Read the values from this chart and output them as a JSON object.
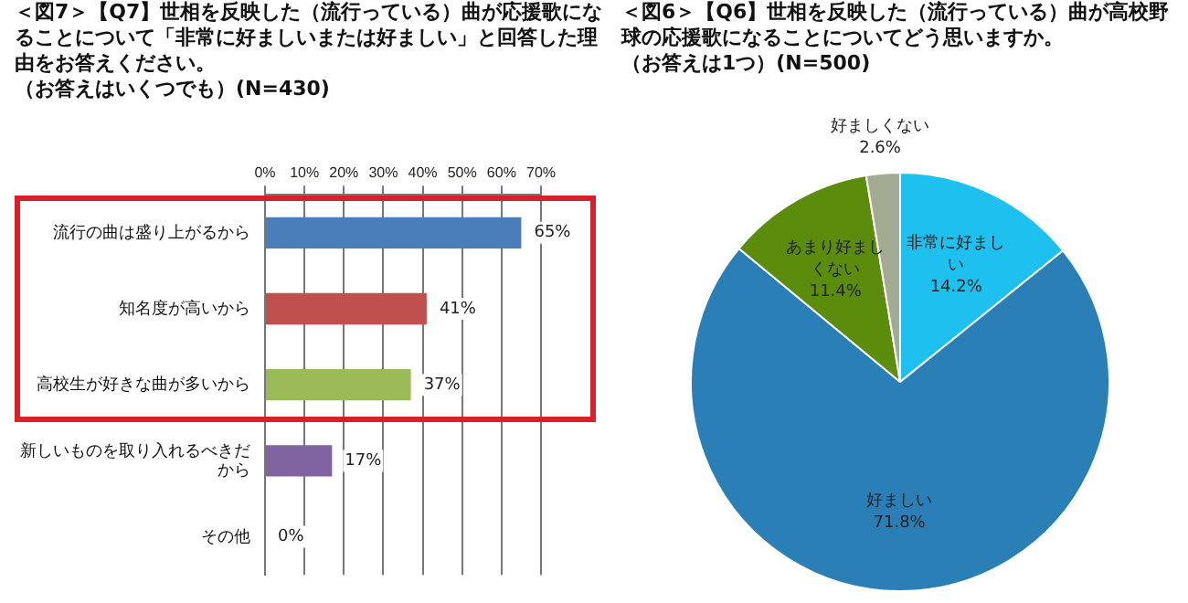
{
  "chart_data": [
    {
      "type": "bar",
      "orientation": "horizontal",
      "title": "＜図7＞【Q7】世相を反映した（流行っている）曲が応援歌になることについて「非常に好ましいまたは好ましい」と回答した理由をお答えください。",
      "subtitle": "（お答えはいくつでも）(N=430)",
      "categories": [
        "流行の曲は盛り上がるから",
        "知名度が高いから",
        "高校生が好きな曲が多いから",
        "新しいものを取り入れるべきだから",
        "その他"
      ],
      "values": [
        65,
        41,
        37,
        17,
        0
      ],
      "colors": [
        "#4a7ebb",
        "#c0504d",
        "#9bbb59",
        "#8064a2",
        "#4a7ebb"
      ],
      "value_labels": [
        "65%",
        "41%",
        "37%",
        "17%",
        "0%"
      ],
      "xlim": [
        0,
        70
      ],
      "xticks": [
        {
          "value": 0,
          "label": "0%"
        },
        {
          "value": 10,
          "label": "10%"
        },
        {
          "value": 20,
          "label": "20%"
        },
        {
          "value": 30,
          "label": "30%"
        },
        {
          "value": 40,
          "label": "40%"
        },
        {
          "value": 50,
          "label": "50%"
        },
        {
          "value": 60,
          "label": "60%"
        },
        {
          "value": 70,
          "label": "70%"
        }
      ],
      "grid": "x",
      "legend": false
    },
    {
      "type": "pie",
      "title": "＜図6＞【Q6】世相を反映した（流行っている）曲が高校野球の応援歌になることについてどう思いますか。",
      "subtitle": "（お答えは1つ）(N=500)",
      "categories": [
        "非常に好ましい",
        "好ましい",
        "あまり好ましくない",
        "好ましくない"
      ],
      "values": [
        14.2,
        71.8,
        11.4,
        2.6
      ],
      "colors": [
        "#1ec0f0",
        "#2a80b6",
        "#5c8c0c",
        "#a3ab93"
      ],
      "value_labels": [
        "14.2%",
        "71.8%",
        "11.4%",
        "2.6%"
      ],
      "legend": false
    }
  ]
}
